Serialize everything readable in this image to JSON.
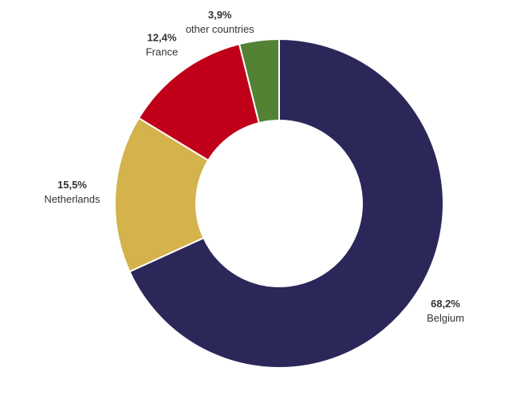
{
  "chart_data": {
    "type": "pie",
    "title": "",
    "donut": true,
    "start_angle_deg": 0,
    "direction": "clockwise",
    "slices": [
      {
        "label": "Belgium",
        "value": 68.2,
        "value_label": "68,2%",
        "color": "#2b2759"
      },
      {
        "label": "Netherlands",
        "value": 15.5,
        "value_label": "15,5%",
        "color": "#d4b24c"
      },
      {
        "label": "France",
        "value": 12.4,
        "value_label": "12,4%",
        "color": "#c00018"
      },
      {
        "label": "other countries",
        "value": 3.9,
        "value_label": "3,9%",
        "color": "#548235"
      }
    ]
  }
}
